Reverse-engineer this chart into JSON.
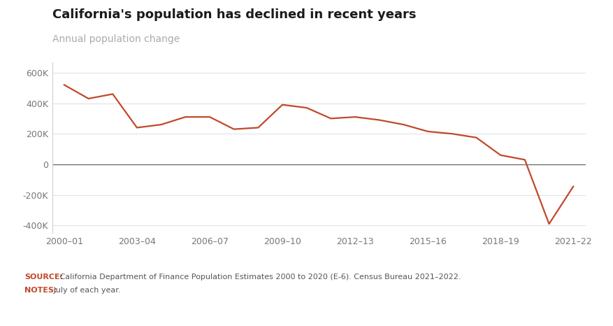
{
  "title": "California's population has declined in recent years",
  "subtitle": "Annual population change",
  "line_color": "#C0492B",
  "zero_line_color": "#666666",
  "background_color": "#ffffff",
  "footer_bg_color": "#e8e8e8",
  "source_label": "SOURCE:",
  "source_text": " California Department of Finance Population Estimates 2000 to 2020 (E-6). Census Bureau 2021–2022.",
  "notes_label": "NOTES:",
  "notes_text": " July of each year.",
  "x_labels": [
    "2000–01",
    "2003–04",
    "2006–07",
    "2009–10",
    "2012–13",
    "2015–16",
    "2018–19",
    "2021–22"
  ],
  "x_ticks": [
    0,
    3,
    6,
    9,
    12,
    15,
    18,
    21
  ],
  "years": [
    0,
    1,
    2,
    3,
    4,
    5,
    6,
    7,
    8,
    9,
    10,
    11,
    12,
    13,
    14,
    15,
    16,
    17,
    18,
    19,
    20,
    21
  ],
  "values": [
    520000,
    430000,
    460000,
    240000,
    260000,
    310000,
    310000,
    230000,
    240000,
    390000,
    370000,
    300000,
    310000,
    290000,
    260000,
    215000,
    200000,
    175000,
    60000,
    30000,
    -390000,
    -145000
  ],
  "ylim": [
    -450000,
    670000
  ],
  "yticks": [
    -400000,
    -200000,
    0,
    200000,
    400000,
    600000
  ],
  "ytick_labels": [
    "-400K",
    "-200K",
    "0",
    "200K",
    "400K",
    "600K"
  ],
  "title_fontsize": 13,
  "subtitle_fontsize": 10,
  "axis_fontsize": 9,
  "footer_fontsize": 8
}
